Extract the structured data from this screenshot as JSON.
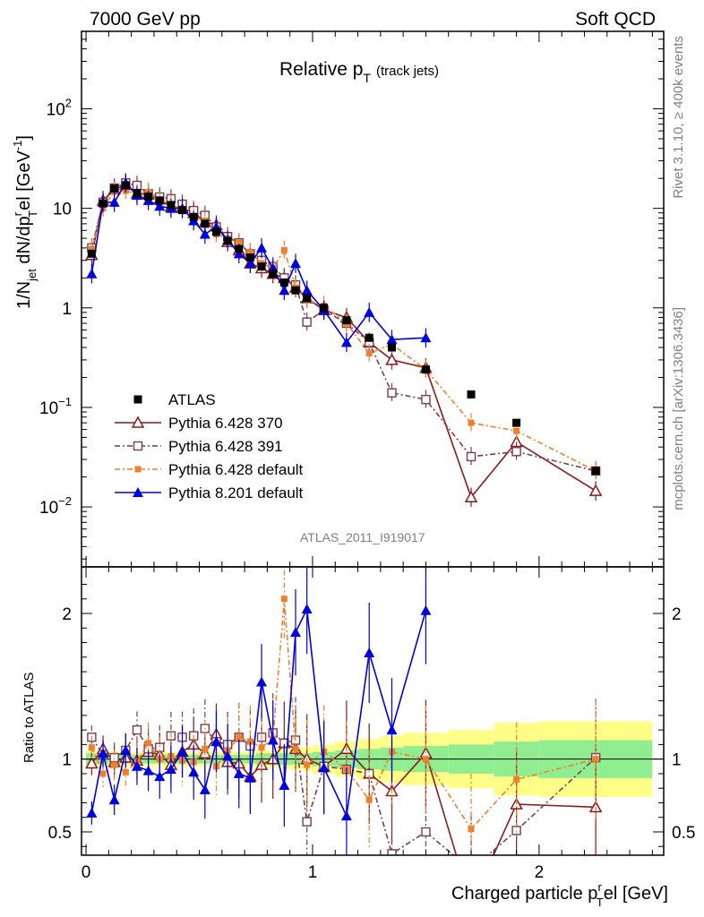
{
  "header": {
    "left": "7000 GeV pp",
    "right": "Soft QCD"
  },
  "side": {
    "top": "Rivet 3.1.10, ≥ 400k events",
    "bottom": "mcplots.cern.ch [arXiv:1306.3436]"
  },
  "watermark": "ATLAS_2011_I919017",
  "chart_data": {
    "type": "line",
    "title": "Relative p_T (track jets)",
    "title_main": "Relative p",
    "title_sub": "T",
    "title_suffix": "(track jets)",
    "ylabel": "1/N_jet dN/dp^r_T el [GeV^-1]",
    "ylabel_parts": {
      "a": "1/N",
      "a_sub": "jet",
      "b": " dN/dp",
      "b_sup": "r",
      "b_sub": "T",
      "c": "el [GeV",
      "c_sup": "-1",
      "d": "]"
    },
    "xlabel": "Charged particle p^r_T el [GeV]",
    "xlabel_parts": {
      "a": "Charged particle p",
      "a_sup": "r",
      "a_sub": "T",
      "b": "el [GeV]"
    },
    "ratio_ylabel": "Ratio to ATLAS",
    "xlim": [
      -0.02,
      2.55
    ],
    "ylim": [
      0.0025,
      600
    ],
    "yscale": "log",
    "ratio_ylim": [
      0.34,
      2.32
    ],
    "x_ticks": [
      0,
      1,
      2
    ],
    "x_ticklabels": [
      "0",
      "1",
      "2"
    ],
    "y_ticks": [
      0.01,
      0.1,
      1,
      10,
      100
    ],
    "y_ticklabels": [
      {
        "base": "10",
        "exp": "−2"
      },
      {
        "base": "10",
        "exp": "−1"
      },
      {
        "base": "1",
        "exp": ""
      },
      {
        "base": "10",
        "exp": ""
      },
      {
        "base": "10",
        "exp": "2"
      }
    ],
    "ratio_ticks": [
      0.5,
      1,
      2
    ],
    "ratio_ticklabels": [
      "0.5",
      "1",
      "2"
    ],
    "legend_position": "lower-left",
    "x": [
      0.025,
      0.075,
      0.125,
      0.175,
      0.225,
      0.275,
      0.325,
      0.375,
      0.425,
      0.475,
      0.525,
      0.575,
      0.625,
      0.675,
      0.725,
      0.775,
      0.825,
      0.875,
      0.925,
      0.975,
      1.05,
      1.15,
      1.25,
      1.35,
      1.5,
      1.7,
      1.9,
      2.25
    ],
    "reference": {
      "name": "ATLAS",
      "color": "#000000",
      "values": [
        3.5,
        11.2,
        15.8,
        17.0,
        14.2,
        13.1,
        12.0,
        10.8,
        9.6,
        8.2,
        7.0,
        5.8,
        4.7,
        3.9,
        3.2,
        2.6,
        2.2,
        1.8,
        1.5,
        1.25,
        1.0,
        0.75,
        0.5,
        0.4,
        0.24,
        0.135,
        0.07,
        0.023
      ]
    },
    "series": [
      {
        "name": "Pythia 6.428 370",
        "color": "#8b1a1a",
        "marker": "open-triangle",
        "dash": "",
        "values": [
          3.4,
          12.0,
          15.5,
          17.2,
          14.0,
          13.8,
          12.3,
          10.4,
          10.1,
          9.0,
          7.3,
          6.8,
          4.6,
          3.8,
          2.8,
          2.5,
          2.2,
          2.0,
          1.6,
          1.25,
          0.95,
          0.8,
          0.45,
          0.3,
          0.25,
          0.0125,
          0.045,
          0.0145
        ],
        "ratio": [
          0.97,
          1.07,
          0.98,
          1.01,
          0.99,
          1.05,
          1.03,
          0.96,
          1.05,
          1.1,
          1.04,
          1.17,
          0.98,
          0.97,
          0.88,
          0.96,
          1.0,
          1.11,
          1.07,
          1.0,
          0.95,
          1.07,
          0.9,
          0.78,
          1.04,
          0.0,
          0.69,
          0.67
        ]
      },
      {
        "name": "Pythia 6.428 391",
        "color": "#7a3d4e",
        "marker": "open-square",
        "dash": "6,3,2,3",
        "values": [
          4.0,
          11.5,
          16.0,
          18.0,
          17.0,
          14.0,
          13.0,
          12.5,
          11.0,
          9.5,
          8.5,
          6.5,
          5.2,
          4.5,
          3.5,
          3.0,
          2.6,
          2.0,
          1.7,
          0.72,
          0.95,
          0.7,
          0.45,
          0.14,
          0.12,
          0.032,
          0.036,
          0.023
        ],
        "ratio": [
          1.15,
          1.03,
          1.01,
          1.06,
          1.2,
          1.07,
          1.08,
          1.16,
          1.15,
          1.16,
          1.21,
          1.12,
          1.1,
          1.15,
          1.09,
          1.15,
          1.18,
          1.11,
          1.13,
          0.57,
          0.95,
          0.93,
          0.9,
          0.35,
          0.5,
          0.24,
          0.51,
          1.01
        ]
      },
      {
        "name": "Pythia 6.428 default",
        "color": "#f07f2a",
        "marker": "filled-square",
        "dash": "6,3,2,3",
        "values": [
          3.9,
          10.0,
          15.0,
          15.0,
          14.0,
          14.5,
          12.0,
          11.0,
          9.5,
          8.0,
          7.5,
          5.5,
          5.0,
          4.5,
          3.6,
          2.8,
          2.5,
          3.8,
          1.6,
          1.2,
          1.05,
          0.7,
          0.35,
          0.43,
          0.24,
          0.07,
          0.058,
          0.023
        ],
        "ratio": [
          1.08,
          0.9,
          0.96,
          0.91,
          0.98,
          1.11,
          1.0,
          1.02,
          0.99,
          0.98,
          1.07,
          0.95,
          1.06,
          1.15,
          1.12,
          1.08,
          1.14,
          2.1,
          1.07,
          0.96,
          1.05,
          0.93,
          0.72,
          1.05,
          1.0,
          0.52,
          0.86,
          1.0
        ]
      },
      {
        "name": "Pythia 8.201 default",
        "color": "#0000dd",
        "marker": "filled-triangle",
        "dash": "",
        "values": [
          2.2,
          11.5,
          11.5,
          18.0,
          13.5,
          12.0,
          10.5,
          10.0,
          10.0,
          7.5,
          5.5,
          6.5,
          4.8,
          3.5,
          2.8,
          4.0,
          2.5,
          1.5,
          2.8,
          1.5,
          0.95,
          0.45,
          0.9,
          0.48,
          0.5,
          0,
          0,
          0
        ],
        "ratio": [
          0.63,
          1.04,
          0.72,
          1.06,
          0.95,
          0.92,
          0.88,
          0.93,
          1.05,
          0.91,
          0.79,
          1.12,
          1.02,
          0.9,
          0.87,
          1.53,
          1.13,
          0.82,
          1.87,
          2.03,
          0.94,
          0.61,
          1.73,
          1.2,
          2.02,
          0,
          0,
          0
        ]
      }
    ],
    "band_edges": [
      0,
      0.05,
      0.1,
      0.15,
      0.2,
      0.25,
      0.3,
      0.35,
      0.4,
      0.45,
      0.5,
      0.55,
      0.6,
      0.65,
      0.7,
      0.75,
      0.8,
      0.85,
      0.9,
      0.95,
      1.0,
      1.1,
      1.2,
      1.3,
      1.4,
      1.6,
      1.8,
      2.0,
      2.5
    ],
    "band_inner": [
      0.04,
      0.03,
      0.03,
      0.03,
      0.03,
      0.03,
      0.03,
      0.03,
      0.03,
      0.03,
      0.03,
      0.03,
      0.03,
      0.03,
      0.03,
      0.04,
      0.04,
      0.04,
      0.04,
      0.04,
      0.05,
      0.06,
      0.07,
      0.08,
      0.09,
      0.1,
      0.12,
      0.13
    ],
    "band_outer": [
      0.06,
      0.05,
      0.05,
      0.05,
      0.05,
      0.05,
      0.05,
      0.05,
      0.05,
      0.05,
      0.05,
      0.05,
      0.05,
      0.05,
      0.05,
      0.06,
      0.06,
      0.07,
      0.07,
      0.08,
      0.1,
      0.12,
      0.14,
      0.16,
      0.18,
      0.2,
      0.25,
      0.26
    ],
    "band_colors": {
      "inner": "#90ee90",
      "outer": "#ffff88"
    }
  }
}
